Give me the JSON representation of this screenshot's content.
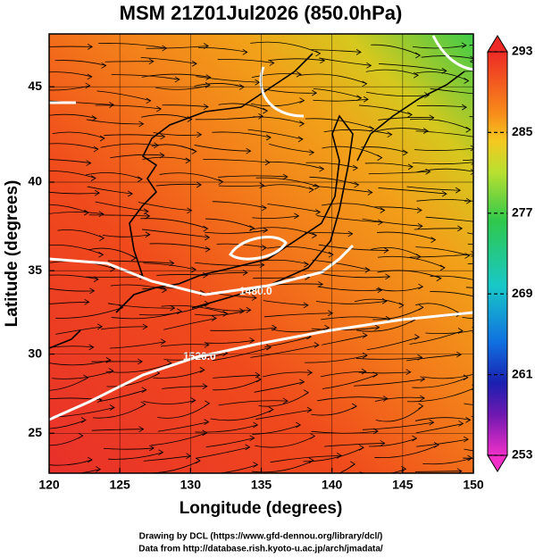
{
  "chart_data": {
    "type": "map",
    "title": "MSM 21Z01Jul2026 (850.0hPa)",
    "xlabel": "Longitude (degrees)",
    "ylabel": "Latitude  (degrees)",
    "xlim": [
      120,
      150
    ],
    "xticks": [
      120,
      125,
      130,
      135,
      140,
      145,
      150
    ],
    "ylim": [
      22.4,
      47.6
    ],
    "yticks": [
      25,
      30,
      35,
      40,
      45
    ],
    "colorbar": {
      "lim": [
        253,
        293
      ],
      "ticks": [
        253,
        261,
        269,
        277,
        285,
        293
      ]
    },
    "contour_labels": [
      "1480.0",
      "1520.0"
    ],
    "footer": [
      "Drawing by DCL (https://www.gfd-dennou.org/library/dcl/)",
      "Data from http://database.rish.kyoto-u.ac.jp/arch/jmadata/"
    ]
  }
}
